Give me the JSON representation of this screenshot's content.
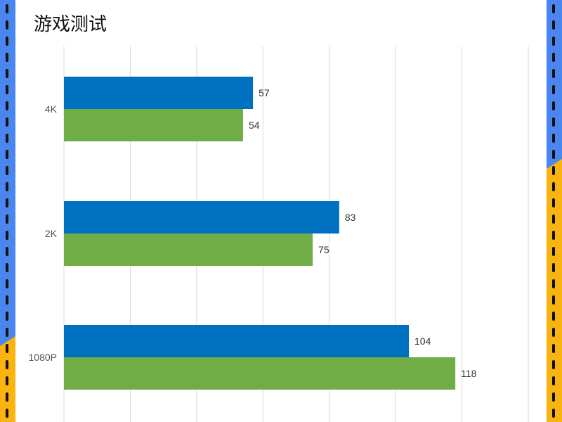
{
  "chart_data": {
    "type": "bar",
    "orientation": "horizontal",
    "title": "游戏测试",
    "categories": [
      "4K",
      "2K",
      "1080P"
    ],
    "series": [
      {
        "values": [
          57,
          83,
          104
        ],
        "color": "#0070c0"
      },
      {
        "values": [
          54,
          75,
          118
        ],
        "color": "#70ad47"
      }
    ],
    "xlim": [
      0,
      140
    ],
    "grid_step": 20,
    "grid": true,
    "legend": "none"
  },
  "frame": {
    "stripe_blue": "#4a86f0",
    "stripe_yellow": "#fbb40f",
    "dash_color": "#111111"
  }
}
